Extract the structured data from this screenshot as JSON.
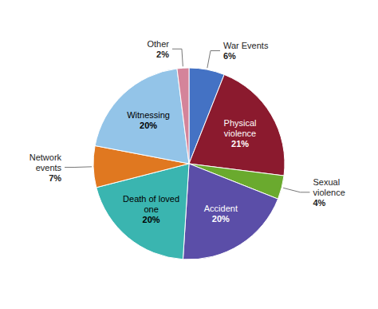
{
  "chart_data": {
    "type": "pie",
    "categories": [
      "War Events",
      "Physical\nviolence",
      "Sexual\nviolence",
      "Accident",
      "Death of loved\none",
      "Network\nevents",
      "Witnessing",
      "Other"
    ],
    "values": [
      6,
      21,
      4,
      20,
      20,
      7,
      20,
      2
    ],
    "value_labels": [
      "6%",
      "21%",
      "4%",
      "20%",
      "20%",
      "7%",
      "20%",
      "2%"
    ],
    "colors": [
      "#4472c4",
      "#8b1a2e",
      "#6aaa2e",
      "#5b4ea8",
      "#3ab5b0",
      "#e07820",
      "#93c4e8",
      "#d4849a"
    ],
    "data_labels": true
  }
}
